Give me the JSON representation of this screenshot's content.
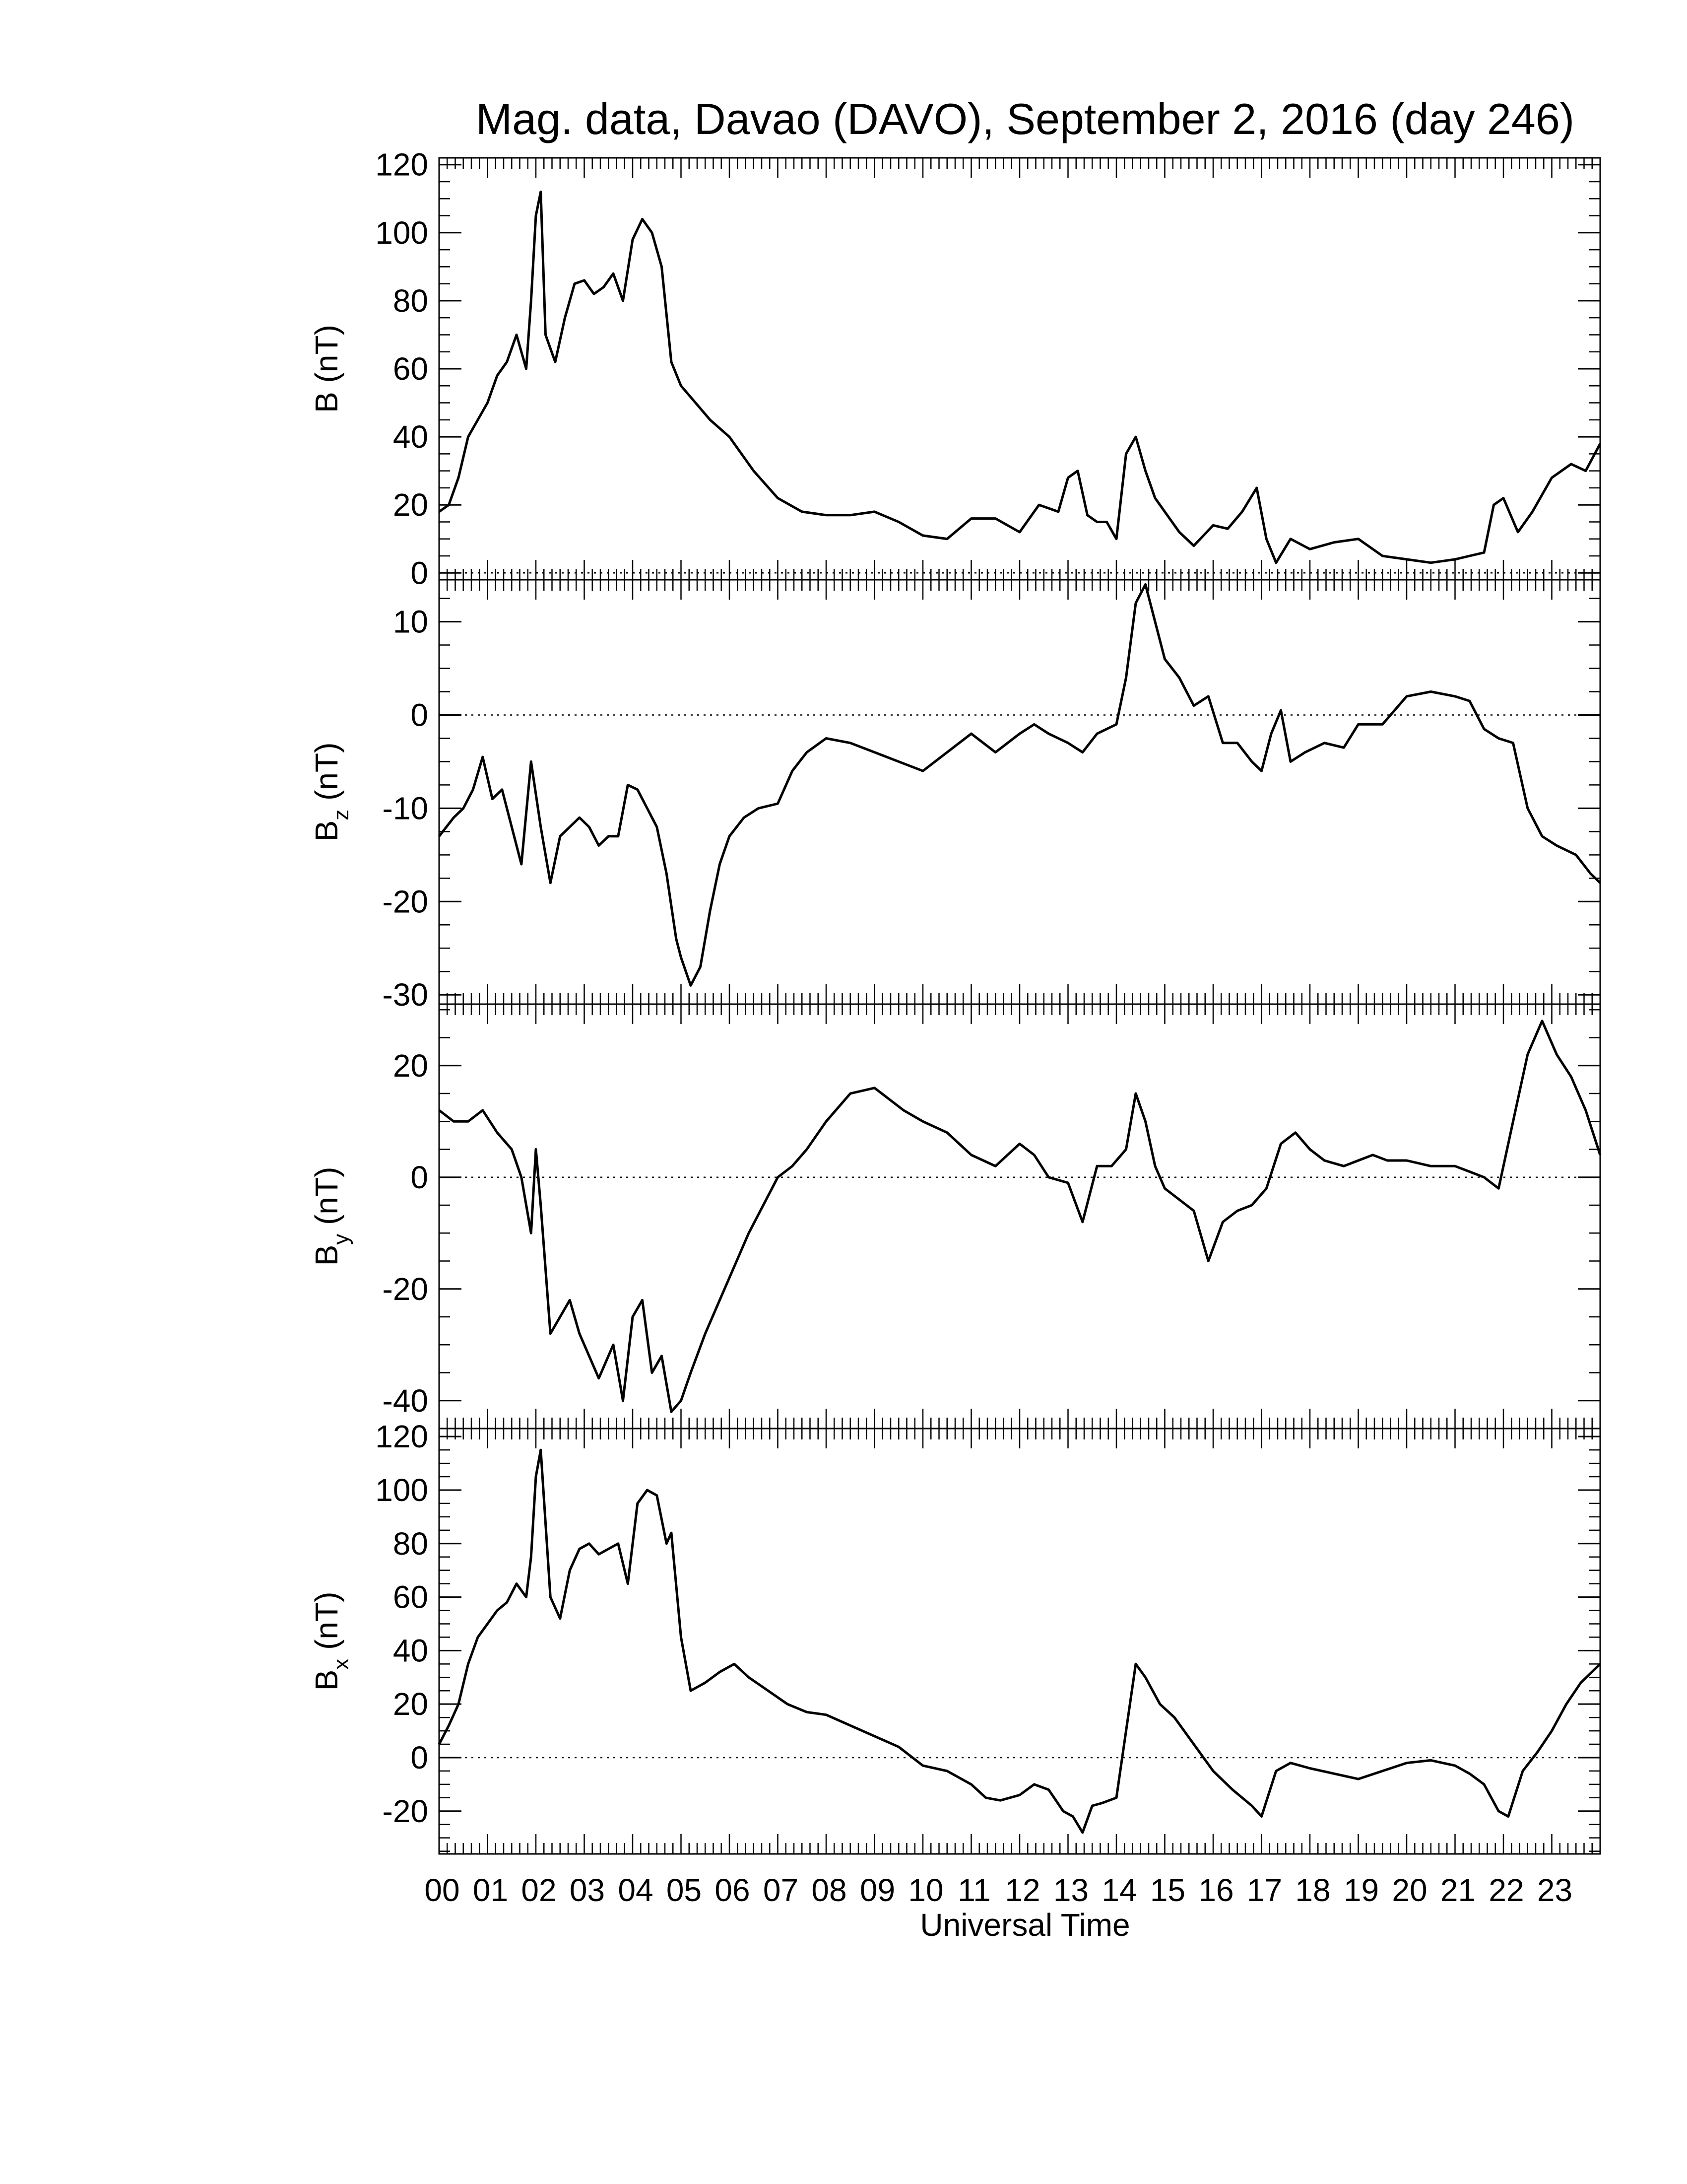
{
  "chart_data": {
    "title": "Mag. data, Davao (DAVO), September 2, 2016 (day 246)",
    "xlabel": "Universal Time",
    "x_ticks": [
      "00",
      "01",
      "02",
      "03",
      "04",
      "05",
      "06",
      "07",
      "08",
      "09",
      "10",
      "11",
      "12",
      "13",
      "14",
      "15",
      "16",
      "17",
      "18",
      "19",
      "20",
      "21",
      "22",
      "23"
    ],
    "xlim": [
      0,
      24
    ],
    "x_unit": "hours UT",
    "line_color": "#000000",
    "zero_line_style": "dotted",
    "panels": [
      {
        "type": "line",
        "ylabel": "B (nT)",
        "ylabel_main": "B",
        "ylabel_sub": "",
        "ylabel_unit": "(nT)",
        "ylim": [
          -2,
          122
        ],
        "yticks": [
          0,
          20,
          40,
          60,
          80,
          100,
          120
        ],
        "x": [
          0,
          0.2,
          0.4,
          0.6,
          0.8,
          1.0,
          1.2,
          1.4,
          1.6,
          1.8,
          1.9,
          2.0,
          2.1,
          2.2,
          2.4,
          2.6,
          2.8,
          3.0,
          3.2,
          3.4,
          3.6,
          3.8,
          4.0,
          4.2,
          4.4,
          4.6,
          4.8,
          5.0,
          5.3,
          5.6,
          6.0,
          6.5,
          7.0,
          7.5,
          8.0,
          8.5,
          9.0,
          9.5,
          10.0,
          10.5,
          11.0,
          11.5,
          12.0,
          12.4,
          12.8,
          13.0,
          13.2,
          13.4,
          13.6,
          13.8,
          14.0,
          14.2,
          14.4,
          14.6,
          14.8,
          15.0,
          15.3,
          15.6,
          16.0,
          16.3,
          16.6,
          16.9,
          17.1,
          17.3,
          17.6,
          18.0,
          18.5,
          19.0,
          19.5,
          20.0,
          20.5,
          21.0,
          21.3,
          21.6,
          21.8,
          22.0,
          22.3,
          22.6,
          23.0,
          23.4,
          23.7,
          24.0
        ],
        "values": [
          18,
          20,
          28,
          40,
          45,
          50,
          58,
          62,
          70,
          60,
          80,
          105,
          112,
          70,
          62,
          75,
          85,
          86,
          82,
          84,
          88,
          80,
          98,
          104,
          100,
          90,
          62,
          55,
          50,
          45,
          40,
          30,
          22,
          18,
          17,
          17,
          18,
          15,
          11,
          10,
          16,
          16,
          12,
          20,
          18,
          28,
          30,
          17,
          15,
          15,
          10,
          35,
          40,
          30,
          22,
          18,
          12,
          8,
          14,
          13,
          18,
          25,
          10,
          3,
          10,
          7,
          9,
          10,
          5,
          4,
          3,
          4,
          5,
          6,
          20,
          22,
          12,
          18,
          28,
          32,
          30,
          38
        ]
      },
      {
        "type": "line",
        "ylabel": "Bz (nT)",
        "ylabel_main": "B",
        "ylabel_sub": "z",
        "ylabel_unit": "(nT)",
        "ylim": [
          -31,
          14.5
        ],
        "yticks": [
          -30,
          -20,
          -10,
          0,
          10
        ],
        "x": [
          0,
          0.3,
          0.5,
          0.7,
          0.9,
          1.1,
          1.3,
          1.5,
          1.7,
          1.9,
          2.1,
          2.3,
          2.5,
          2.7,
          2.9,
          3.1,
          3.3,
          3.5,
          3.7,
          3.9,
          4.1,
          4.3,
          4.5,
          4.7,
          4.9,
          5.0,
          5.2,
          5.4,
          5.6,
          5.8,
          6.0,
          6.3,
          6.6,
          7.0,
          7.3,
          7.6,
          8.0,
          8.5,
          9.0,
          9.5,
          10.0,
          10.5,
          11.0,
          11.5,
          12.0,
          12.3,
          12.6,
          13.0,
          13.3,
          13.6,
          14.0,
          14.2,
          14.4,
          14.6,
          14.8,
          15.0,
          15.3,
          15.6,
          15.9,
          16.2,
          16.5,
          16.8,
          17.0,
          17.2,
          17.4,
          17.6,
          17.9,
          18.3,
          18.7,
          19.0,
          19.5,
          20.0,
          20.5,
          21.0,
          21.3,
          21.6,
          21.9,
          22.2,
          22.5,
          22.8,
          23.1,
          23.5,
          23.8,
          24.0
        ],
        "values": [
          -13,
          -11,
          -10,
          -8,
          -4.5,
          -9,
          -8,
          -12,
          -16,
          -5,
          -12,
          -18,
          -13,
          -12,
          -11,
          -12,
          -14,
          -13,
          -13,
          -7.5,
          -8,
          -10,
          -12,
          -17,
          -24,
          -26,
          -29,
          -27,
          -21,
          -16,
          -13,
          -11,
          -10,
          -9.5,
          -6,
          -4,
          -2.5,
          -3,
          -4,
          -5,
          -6,
          -4,
          -2,
          -4,
          -2,
          -1,
          -2,
          -3,
          -4,
          -2,
          -1,
          4,
          12,
          14,
          10,
          6,
          4,
          1,
          2,
          -3,
          -3,
          -5,
          -6,
          -2,
          0.5,
          -5,
          -4,
          -3,
          -3.5,
          -1,
          -1,
          2,
          2.5,
          2,
          1.5,
          -1.5,
          -2.5,
          -3,
          -10,
          -13,
          -14,
          -15,
          -17,
          -18
        ]
      },
      {
        "type": "line",
        "ylabel": "By (nT)",
        "ylabel_main": "B",
        "ylabel_sub": "y",
        "ylabel_unit": "(nT)",
        "ylim": [
          -45,
          31
        ],
        "yticks": [
          -40,
          -20,
          0,
          20
        ],
        "x": [
          0,
          0.3,
          0.6,
          0.9,
          1.2,
          1.5,
          1.7,
          1.9,
          2.0,
          2.1,
          2.3,
          2.5,
          2.7,
          2.9,
          3.1,
          3.3,
          3.6,
          3.8,
          4.0,
          4.2,
          4.4,
          4.6,
          4.8,
          5.0,
          5.2,
          5.5,
          5.8,
          6.1,
          6.4,
          6.7,
          7.0,
          7.3,
          7.6,
          8.0,
          8.5,
          9.0,
          9.3,
          9.6,
          10.0,
          10.5,
          11.0,
          11.5,
          12.0,
          12.3,
          12.6,
          13.0,
          13.3,
          13.6,
          13.9,
          14.2,
          14.4,
          14.6,
          14.8,
          15.0,
          15.3,
          15.6,
          15.9,
          16.2,
          16.5,
          16.8,
          17.1,
          17.4,
          17.7,
          18.0,
          18.3,
          18.7,
          19.0,
          19.3,
          19.6,
          20.0,
          20.5,
          21.0,
          21.3,
          21.6,
          21.9,
          22.2,
          22.5,
          22.8,
          23.1,
          23.4,
          23.7,
          24.0
        ],
        "values": [
          12,
          10,
          10,
          12,
          8,
          5,
          0,
          -10,
          5,
          -5,
          -28,
          -25,
          -22,
          -28,
          -32,
          -36,
          -30,
          -40,
          -25,
          -22,
          -35,
          -32,
          -42,
          -40,
          -35,
          -28,
          -22,
          -16,
          -10,
          -5,
          0,
          2,
          5,
          10,
          15,
          16,
          14,
          12,
          10,
          8,
          4,
          2,
          6,
          4,
          0,
          -1,
          -8,
          2,
          2,
          5,
          15,
          10,
          2,
          -2,
          -4,
          -6,
          -15,
          -8,
          -6,
          -5,
          -2,
          6,
          8,
          5,
          3,
          2,
          3,
          4,
          3,
          3,
          2,
          2,
          1,
          0,
          -2,
          10,
          22,
          28,
          22,
          18,
          12,
          4
        ]
      },
      {
        "type": "line",
        "ylabel": "Bx (nT)",
        "ylabel_main": "B",
        "ylabel_sub": "x",
        "ylabel_unit": "(nT)",
        "ylim": [
          -36,
          123
        ],
        "yticks": [
          -20,
          0,
          20,
          40,
          60,
          80,
          100,
          120
        ],
        "x": [
          0,
          0.2,
          0.4,
          0.6,
          0.8,
          1.0,
          1.2,
          1.4,
          1.6,
          1.8,
          1.9,
          2.0,
          2.1,
          2.3,
          2.5,
          2.7,
          2.9,
          3.1,
          3.3,
          3.5,
          3.7,
          3.9,
          4.1,
          4.3,
          4.5,
          4.7,
          4.8,
          5.0,
          5.2,
          5.5,
          5.8,
          6.1,
          6.4,
          6.8,
          7.2,
          7.6,
          8.0,
          8.5,
          9.0,
          9.5,
          10.0,
          10.5,
          11.0,
          11.3,
          11.6,
          12.0,
          12.3,
          12.6,
          12.9,
          13.1,
          13.3,
          13.5,
          13.7,
          14.0,
          14.2,
          14.4,
          14.6,
          14.9,
          15.2,
          15.6,
          16.0,
          16.4,
          16.8,
          17.0,
          17.3,
          17.6,
          18.0,
          18.5,
          19.0,
          19.5,
          20.0,
          20.5,
          21.0,
          21.3,
          21.6,
          21.9,
          22.1,
          22.4,
          22.7,
          23.0,
          23.3,
          23.6,
          24.0
        ],
        "values": [
          5,
          12,
          20,
          35,
          45,
          50,
          55,
          58,
          65,
          60,
          75,
          105,
          115,
          60,
          52,
          70,
          78,
          80,
          76,
          78,
          80,
          65,
          95,
          100,
          98,
          80,
          84,
          45,
          25,
          28,
          32,
          35,
          30,
          25,
          20,
          17,
          16,
          12,
          8,
          4,
          -3,
          -5,
          -10,
          -15,
          -16,
          -14,
          -10,
          -12,
          -20,
          -22,
          -28,
          -18,
          -17,
          -15,
          10,
          35,
          30,
          20,
          15,
          5,
          -5,
          -12,
          -18,
          -22,
          -5,
          -2,
          -4,
          -6,
          -8,
          -5,
          -2,
          -1,
          -3,
          -6,
          -10,
          -20,
          -22,
          -5,
          2,
          10,
          20,
          28,
          35
        ]
      }
    ]
  }
}
